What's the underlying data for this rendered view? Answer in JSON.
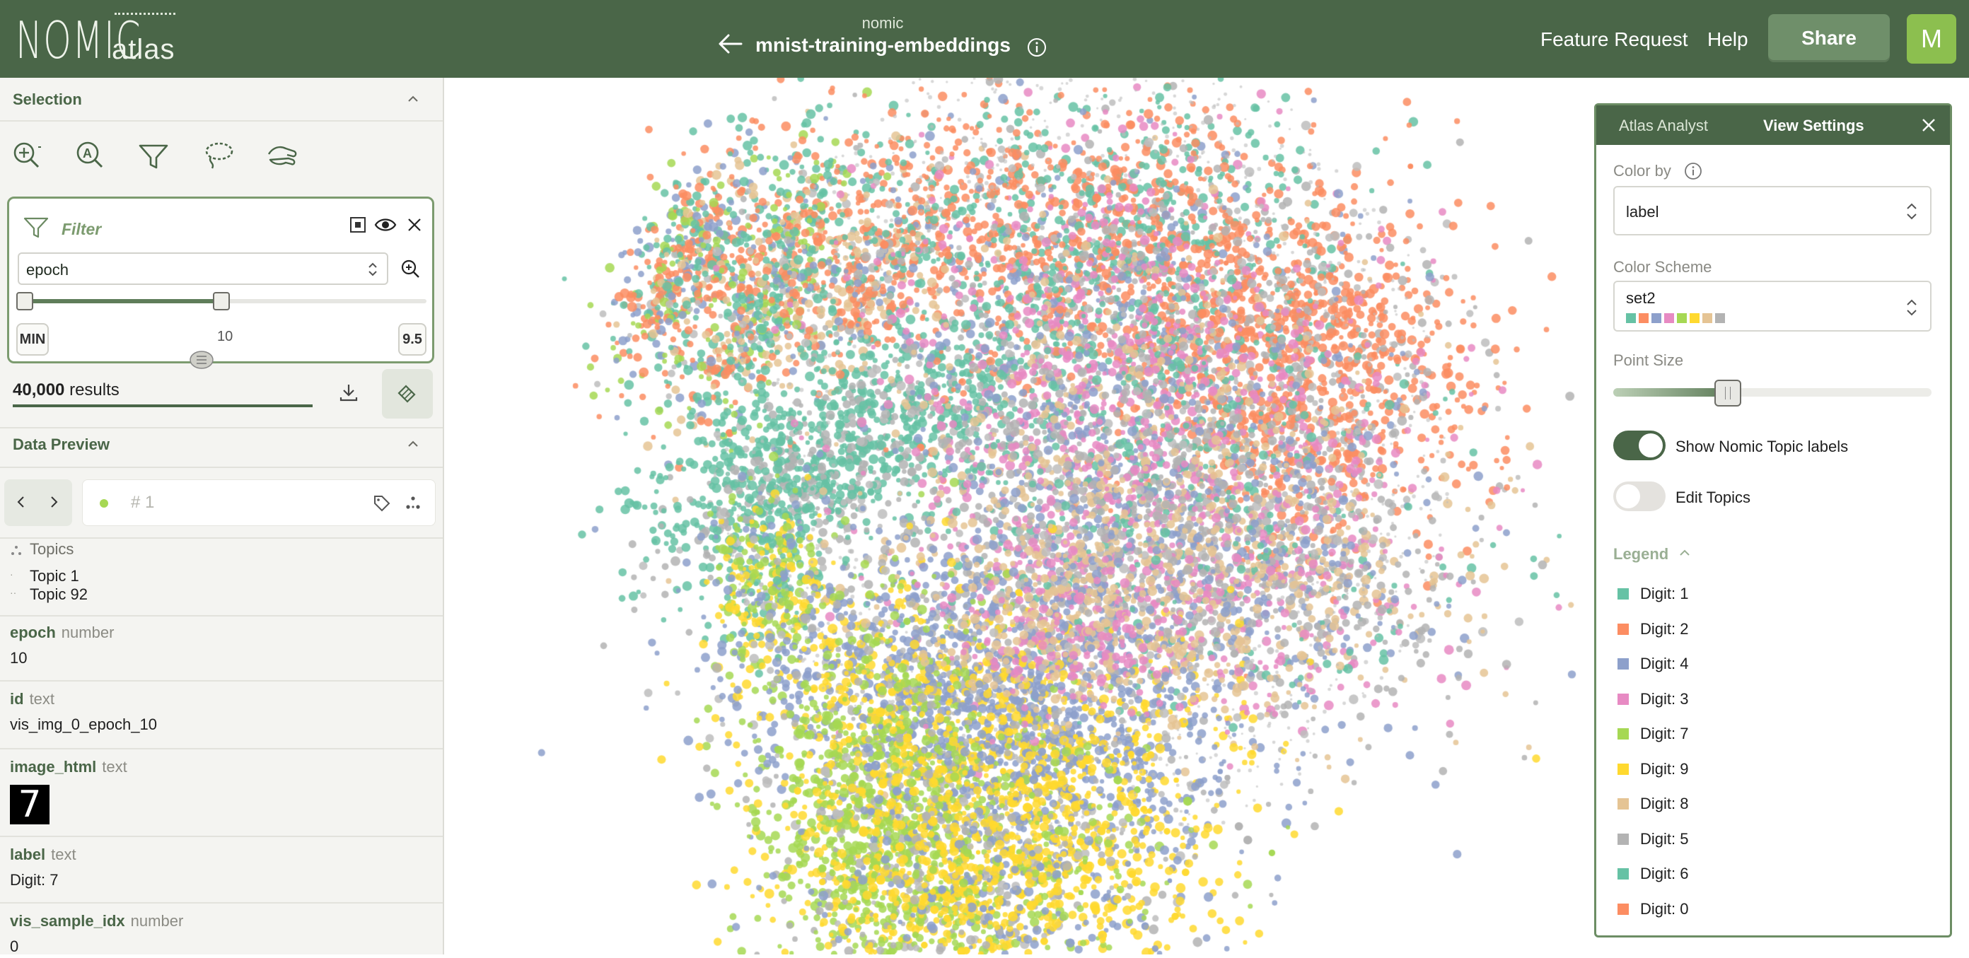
{
  "header": {
    "logo_main": "NOMIC",
    "logo_sub": "atlas",
    "org": "nomic",
    "project_title": "mnist-training-embeddings",
    "feature_request": "Feature Request",
    "help": "Help",
    "share": "Share",
    "avatar_initial": "M"
  },
  "sidebar": {
    "selection_title": "Selection",
    "filter": {
      "title": "Filter",
      "field": "epoch",
      "min_label": "MIN",
      "mid_label": "10",
      "max_label": "9.5",
      "range_fill": 0.5
    },
    "results_count": "40,000",
    "results_label": "results",
    "data_preview_title": "Data Preview",
    "index_value": "# 1",
    "topics": {
      "heading": "Topics",
      "items": [
        "Topic 1",
        "Topic 92"
      ]
    },
    "fields": [
      {
        "name": "epoch",
        "type": "number",
        "value": "10"
      },
      {
        "name": "id",
        "type": "text",
        "value": "vis_img_0_epoch_10"
      },
      {
        "name": "image_html",
        "type": "text",
        "value": "7"
      },
      {
        "name": "label",
        "type": "text",
        "value": "Digit: 7"
      },
      {
        "name": "vis_sample_idx",
        "type": "number",
        "value": "0"
      }
    ]
  },
  "panel": {
    "tab_analyst": "Atlas Analyst",
    "tab_settings": "View Settings",
    "color_by_label": "Color by",
    "color_by_value": "label",
    "color_scheme_label": "Color Scheme",
    "color_scheme_value": "set2",
    "scheme_colors": [
      "#66c2a5",
      "#fc8d62",
      "#8da0cb",
      "#e78ac3",
      "#a6d854",
      "#ffd92f",
      "#e5c494",
      "#b3b3b3"
    ],
    "point_size_label": "Point Size",
    "point_size_level": 0.36,
    "show_topics_label": "Show Nomic Topic labels",
    "show_topics_on": true,
    "edit_topics_label": "Edit Topics",
    "edit_topics_on": false,
    "legend_title": "Legend",
    "legend": [
      {
        "label": "Digit: 1",
        "color": "#66c2a5"
      },
      {
        "label": "Digit: 2",
        "color": "#fc8d62"
      },
      {
        "label": "Digit: 4",
        "color": "#8da0cb"
      },
      {
        "label": "Digit: 3",
        "color": "#e78ac3"
      },
      {
        "label": "Digit: 7",
        "color": "#a6d854"
      },
      {
        "label": "Digit: 9",
        "color": "#ffd92f"
      },
      {
        "label": "Digit: 8",
        "color": "#e5c494"
      },
      {
        "label": "Digit: 5",
        "color": "#b3b3b3"
      },
      {
        "label": "Digit: 6",
        "color": "#66c2a5"
      },
      {
        "label": "Digit: 0",
        "color": "#fc8d62"
      }
    ]
  },
  "colors": {
    "header_bg": "#4a6648",
    "accent": "#7c9b6f",
    "avatar": "#8cbf4f"
  }
}
